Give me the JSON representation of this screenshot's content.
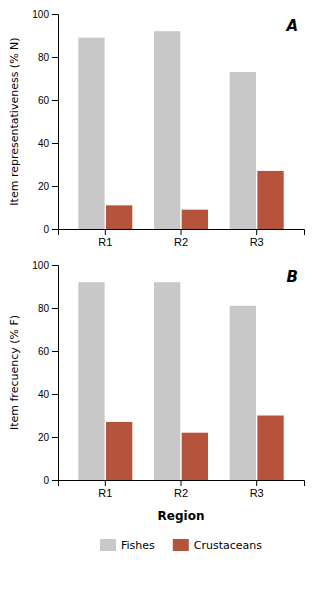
{
  "chart_data": [
    {
      "type": "bar",
      "title": "A",
      "y_label": "Item representativeness (% N)",
      "categories": [
        "R1",
        "R2",
        "R3"
      ],
      "series": [
        {
          "color": "#c8c8c8",
          "values": [
            89,
            92,
            73
          ]
        },
        {
          "color": "#b5533c",
          "values": [
            11,
            9,
            27
          ]
        }
      ],
      "ylim": [
        0,
        100
      ],
      "yticks": [
        0,
        20,
        40,
        60,
        80,
        100
      ],
      "grid": false
    },
    {
      "type": "bar",
      "title": "B",
      "y_label": "Item frecuency (% F)",
      "x_label": "Region",
      "categories": [
        "R1",
        "R2",
        "R3"
      ],
      "series": [
        {
          "name": "Fishes",
          "color": "#c8c8c8",
          "values": [
            92,
            92,
            81
          ]
        },
        {
          "name": "Crustaceans",
          "color": "#b5533c",
          "values": [
            27,
            22,
            30
          ]
        }
      ],
      "ylim": [
        0,
        100
      ],
      "yticks": [
        0,
        20,
        40,
        60,
        80,
        100
      ],
      "grid": false,
      "legend": "bottom"
    }
  ]
}
